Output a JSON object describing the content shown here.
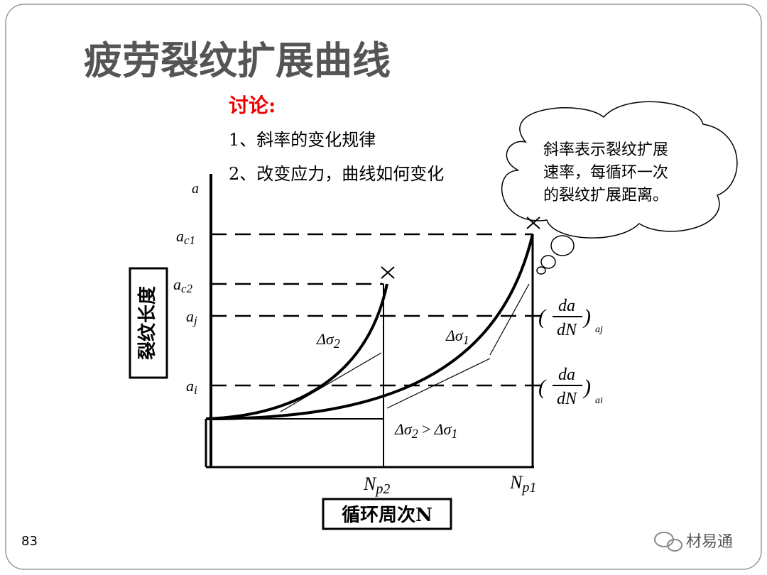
{
  "header": {
    "title": "疲劳裂纹扩展曲线"
  },
  "discussion": {
    "heading": "讨论:",
    "items": [
      "1、斜率的变化规律",
      "2、改变应力，曲线如何变化"
    ]
  },
  "callout": {
    "lines": [
      "斜率表示裂纹扩展",
      "速率，每循环一次",
      "的裂纹扩展距离。"
    ]
  },
  "diagram": {
    "y_axis_symbol": "a",
    "y_axis_title": "裂纹长度",
    "x_axis_title": "循环周次N",
    "levels": [
      {
        "main": "a",
        "sub": "c1"
      },
      {
        "main": "a",
        "sub": "c2"
      },
      {
        "main": "a",
        "sub": "j"
      },
      {
        "main": "a",
        "sub": "i"
      }
    ],
    "curve_labels": [
      {
        "main": "Δσ",
        "sub": "2"
      },
      {
        "main": "Δσ",
        "sub": "1"
      }
    ],
    "comparison": {
      "left": "Δσ",
      "left_sub": "2",
      "op": ">",
      "right": "Δσ",
      "right_sub": "1"
    },
    "x_marks": [
      {
        "main": "N",
        "sub": "p2"
      },
      {
        "main": "N",
        "sub": "p1"
      }
    ],
    "rates": [
      {
        "open": "(",
        "numerator": "da",
        "denominator": "dN",
        "close": ")",
        "sub": "aj"
      },
      {
        "open": "(",
        "numerator": "da",
        "denominator": "dN",
        "close": ")",
        "sub": "ai"
      }
    ]
  },
  "footer": {
    "page": "83",
    "watermark": "材易通"
  }
}
